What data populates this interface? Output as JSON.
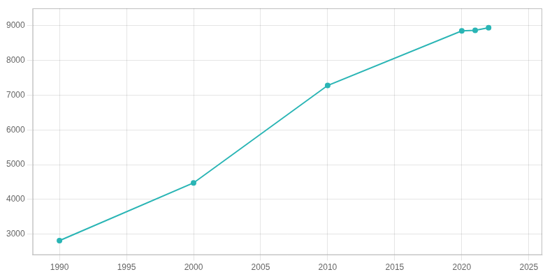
{
  "chart_data": {
    "type": "line",
    "x": [
      1990,
      2000,
      2010,
      2020,
      2021,
      2022
    ],
    "values": [
      2813,
      4476,
      7280,
      8853,
      8868,
      8942
    ],
    "color": "#2ab5b5",
    "marker": "circle",
    "xlim": [
      1988,
      2026
    ],
    "ylim": [
      2400,
      9500
    ],
    "xticks": [
      1990,
      1995,
      2000,
      2005,
      2010,
      2015,
      2020,
      2025
    ],
    "yticks": [
      3000,
      4000,
      5000,
      6000,
      7000,
      8000,
      9000
    ],
    "grid": true
  }
}
